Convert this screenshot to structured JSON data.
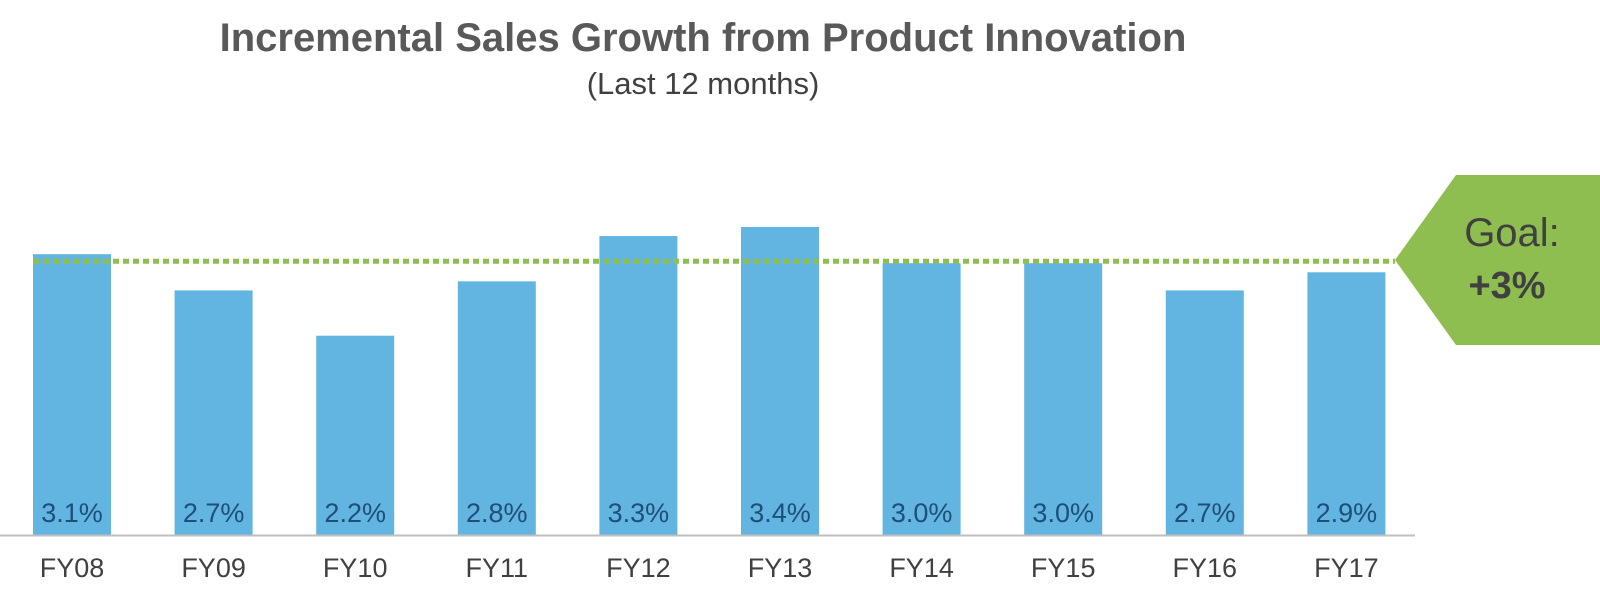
{
  "chart_data": {
    "type": "bar",
    "title": "Incremental Sales Growth from Product Innovation",
    "subtitle": "(Last 12 months)",
    "categories": [
      "FY08",
      "FY09",
      "FY10",
      "FY11",
      "FY12",
      "FY13",
      "FY14",
      "FY15",
      "FY16",
      "FY17"
    ],
    "values": [
      3.1,
      2.7,
      2.2,
      2.8,
      3.3,
      3.4,
      3.0,
      3.0,
      2.7,
      2.9
    ],
    "data_labels": [
      "3.1%",
      "2.7%",
      "2.2%",
      "2.8%",
      "3.3%",
      "3.4%",
      "3.0%",
      "3.0%",
      "2.7%",
      "2.9%"
    ],
    "ylim": [
      0,
      3.4
    ],
    "grid": false,
    "legend": "none",
    "goal": {
      "value": 3.0,
      "label_line1": "Goal:",
      "label_line2": "+3%"
    },
    "colors": {
      "bar": "#62b5e0",
      "goal": "#8fbe50",
      "title": "#595959",
      "data_label": "#1f4e79",
      "axis": "#bfbfbf"
    }
  }
}
